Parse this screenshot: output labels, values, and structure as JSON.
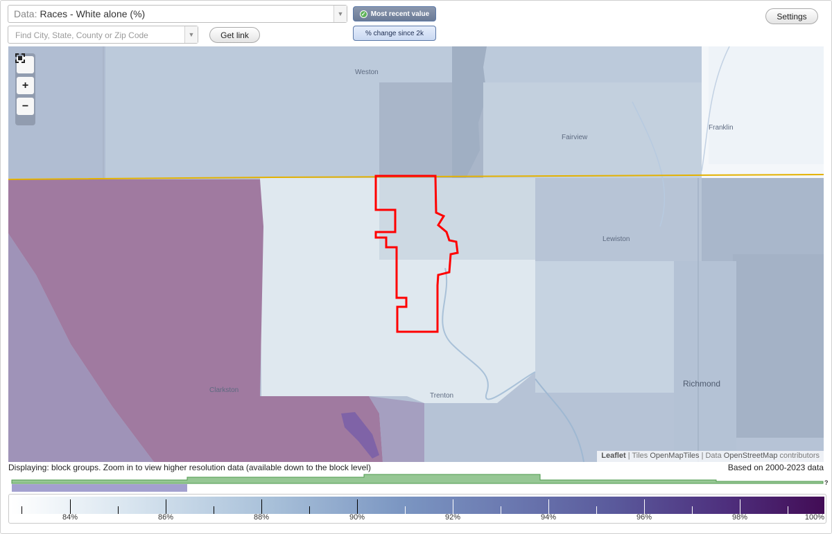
{
  "toolbar": {
    "data_prefix": "Data:",
    "data_value": "Races - White alone (%)",
    "search_placeholder": "Find City, State, County or Zip Code",
    "get_link_label": "Get link",
    "settings_label": "Settings",
    "mode_recent_label": "Most recent value",
    "mode_change_label": "% change since 2k"
  },
  "map": {
    "places": {
      "weston": "Weston",
      "fairview": "Fairview",
      "franklin": "Franklin",
      "lewiston": "Lewiston",
      "clarkston": "Clarkston",
      "trenton": "Trenton",
      "richmond": "Richmond"
    },
    "attribution": {
      "leaflet": "Leaflet",
      "tiles_prefix": "Tiles",
      "tiles_source": "OpenMapTiles",
      "data_prefix": "Data",
      "data_source": "OpenStreetMap",
      "data_suffix": "contributors"
    },
    "colors": {
      "selection_outline": "#ff0000",
      "state_border": "#e3b100",
      "purple_region": "#a07aa0"
    }
  },
  "info": {
    "display_note": "Displaying: block groups. Zoom in to view higher resolution data (available down to the block level)",
    "based_on": "Based on 2000-2023 data",
    "help_mark": "?"
  },
  "legend": {
    "labels": [
      "84%",
      "86%",
      "88%",
      "90%",
      "92%",
      "94%",
      "96%",
      "98%",
      "100%"
    ],
    "colors": [
      "#ffffff",
      "#dae6f0",
      "#a8c0d9",
      "#7b96c2",
      "#6a77af",
      "#5a5a9c",
      "#4e2f7d",
      "#420c55"
    ]
  }
}
